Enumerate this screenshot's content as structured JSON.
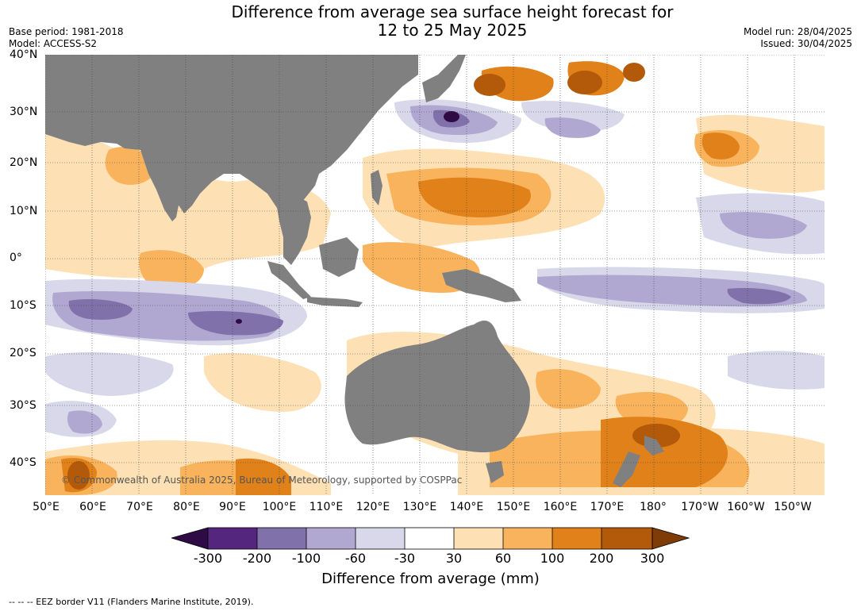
{
  "title": {
    "line1": "Difference from average sea surface height forecast for",
    "line2": "12 to 25 May 2025"
  },
  "meta": {
    "base_period": "Base period: 1981-2018",
    "model": "Model: ACCESS-S2",
    "model_run": "Model run: 28/04/2025",
    "issued": "Issued: 30/04/2025"
  },
  "map": {
    "lat_labels": [
      "40°N",
      "30°N",
      "20°N",
      "10°N",
      "0°",
      "10°S",
      "20°S",
      "30°S",
      "40°S"
    ],
    "lon_labels": [
      "50°E",
      "60°E",
      "70°E",
      "80°E",
      "90°E",
      "100°E",
      "110°E",
      "120°E",
      "130°E",
      "140°E",
      "150°E",
      "160°E",
      "170°E",
      "180°",
      "170°W",
      "160°W",
      "150°W"
    ],
    "credit": "© Commonwealth of Australia 2025, Bureau of Meteorology, supported by COSPPac",
    "land_color": "#808080",
    "ocean_color": "#ffffff"
  },
  "colorbar": {
    "ticks": [
      "-300",
      "-200",
      "-100",
      "-60",
      "-30",
      "30",
      "60",
      "100",
      "200",
      "300"
    ],
    "colors": {
      "lt_neg300": "#2e0b45",
      "neg300_neg200": "#54267e",
      "neg200_neg100": "#8071ab",
      "neg100_neg60": "#b0a8d0",
      "neg60_neg30": "#d8d8ea",
      "neg30_30": "#ffffff",
      "30_60": "#fde0b4",
      "60_100": "#f8b35c",
      "100_200": "#e0811a",
      "200_300": "#b3590a",
      "gt_300": "#7f3c07"
    },
    "label": "Difference from average (mm)"
  },
  "footer": "--  --  -- EEZ border V11 (Flanders Marine Institute, 2019)."
}
